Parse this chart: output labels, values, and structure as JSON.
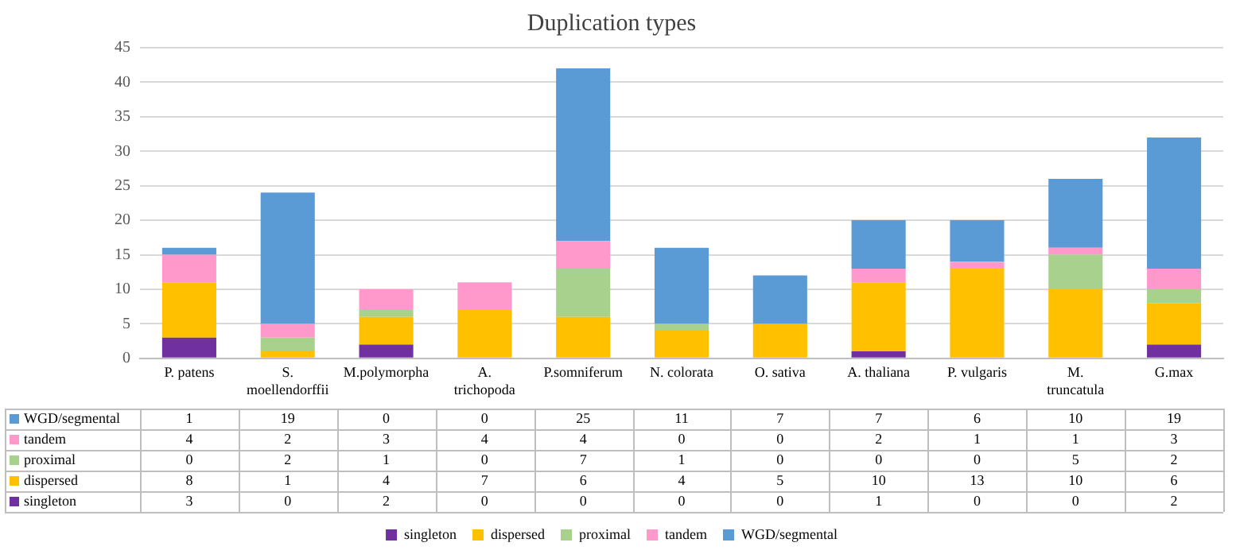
{
  "chart_data": {
    "type": "bar",
    "title": "Duplication types",
    "stacked": true,
    "data_labels": true,
    "grid": "y",
    "legend": "bottom",
    "categories": [
      "P. patens",
      "S. moellendorffii",
      "M.polymorpha",
      "A. trichopoda",
      "P.somniferum",
      "N. colorata",
      "O. sativa",
      "A. thaliana",
      "P. vulgaris",
      "M. truncatula",
      "G.max"
    ],
    "ylim": [
      0,
      45
    ],
    "yticks": [
      0,
      5,
      10,
      15,
      20,
      25,
      30,
      35,
      40,
      45
    ],
    "series": [
      {
        "name": "singleton",
        "color": "#7030a0",
        "values": [
          3,
          0,
          2,
          0,
          0,
          0,
          0,
          1,
          0,
          0,
          2
        ]
      },
      {
        "name": "dispersed",
        "color": "#ffc000",
        "values": [
          8,
          1,
          4,
          7,
          6,
          4,
          5,
          10,
          13,
          10,
          6
        ]
      },
      {
        "name": "proximal",
        "color": "#a9d18e",
        "values": [
          0,
          2,
          1,
          0,
          7,
          1,
          0,
          0,
          0,
          5,
          2
        ]
      },
      {
        "name": "tandem",
        "color": "#ff99cc",
        "values": [
          4,
          2,
          3,
          4,
          4,
          0,
          0,
          2,
          1,
          1,
          3
        ]
      },
      {
        "name": "WGD/segmental",
        "color": "#5b9bd5",
        "values": [
          1,
          19,
          0,
          0,
          25,
          11,
          7,
          7,
          6,
          10,
          19
        ]
      }
    ]
  }
}
